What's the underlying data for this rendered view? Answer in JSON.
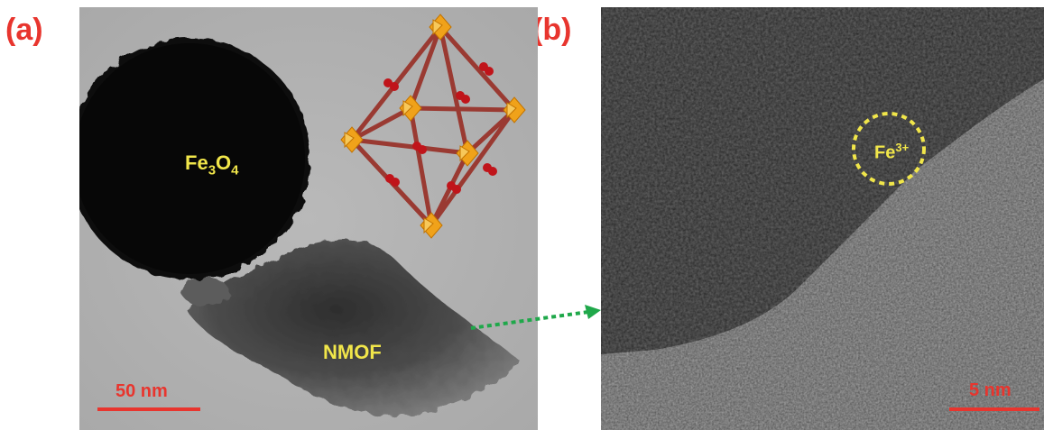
{
  "panel_a": {
    "label": "(a)",
    "particle_label_main": "Fe",
    "particle_label_sub1": "3",
    "particle_label_mid": "O",
    "particle_label_sub2": "4",
    "mof_label": "NMOF",
    "scale_bar_label": "50 nm"
  },
  "panel_b": {
    "label": "(b)",
    "ion_label_main": "Fe",
    "ion_label_sup": "3+",
    "scale_bar_label": "5 nm"
  },
  "colors": {
    "label_red": "#e8352e",
    "overlay_yellow": "#f1e64a",
    "arrow_green": "#1fa84a",
    "cluster_orange": "#f0a21a",
    "linker_red": "#c0141a",
    "bond_brown": "#9a3a32"
  }
}
